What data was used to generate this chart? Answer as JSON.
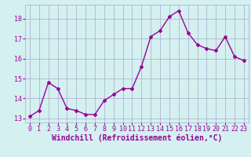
{
  "x": [
    0,
    1,
    2,
    3,
    4,
    5,
    6,
    7,
    8,
    9,
    10,
    11,
    12,
    13,
    14,
    15,
    16,
    17,
    18,
    19,
    20,
    21,
    22,
    23
  ],
  "y": [
    13.1,
    13.4,
    14.8,
    14.5,
    13.5,
    13.4,
    13.2,
    13.2,
    13.9,
    14.2,
    14.5,
    14.5,
    15.6,
    17.1,
    17.4,
    18.1,
    18.4,
    17.3,
    16.7,
    16.5,
    16.4,
    17.1,
    16.1,
    15.9
  ],
  "line_color": "#990099",
  "marker": "D",
  "marker_size": 2,
  "bg_color": "#d4f0f0",
  "grid_color": "#aaaacc",
  "xlabel": "Windchill (Refroidissement éolien,°C)",
  "xlabel_color": "#990099",
  "xticks": [
    0,
    1,
    2,
    3,
    4,
    5,
    6,
    7,
    8,
    9,
    10,
    11,
    12,
    13,
    14,
    15,
    16,
    17,
    18,
    19,
    20,
    21,
    22,
    23
  ],
  "yticks": [
    13,
    14,
    15,
    16,
    17,
    18
  ],
  "ylim": [
    12.8,
    18.7
  ],
  "xlim": [
    -0.5,
    23.5
  ],
  "tick_color": "#990099",
  "tick_fontsize": 6,
  "xlabel_fontsize": 7,
  "linewidth": 1.0
}
